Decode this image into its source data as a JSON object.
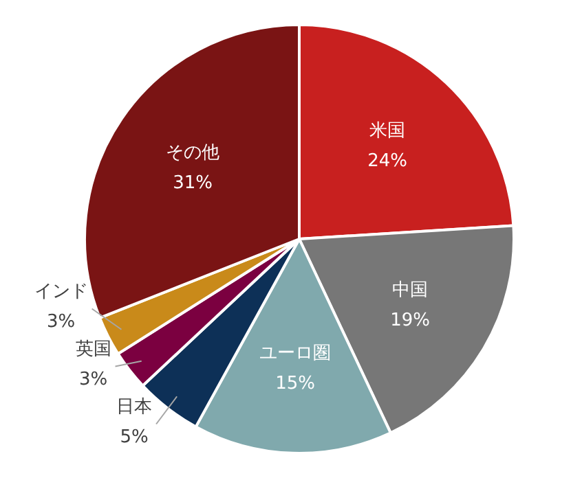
{
  "chart_data": {
    "type": "pie",
    "categories": [
      "米国",
      "中国",
      "ユーロ圏",
      "日本",
      "英国",
      "インド",
      "その他"
    ],
    "values": [
      24,
      19,
      15,
      5,
      3,
      3,
      31
    ],
    "colors": [
      "#c8201f",
      "#777777",
      "#80a9ad",
      "#0d3057",
      "#7b0040",
      "#c98a1a",
      "#7a1414"
    ],
    "value_labels": [
      "24%",
      "19%",
      "15%",
      "5%",
      "3%",
      "3%",
      "31%"
    ],
    "legend": false
  }
}
